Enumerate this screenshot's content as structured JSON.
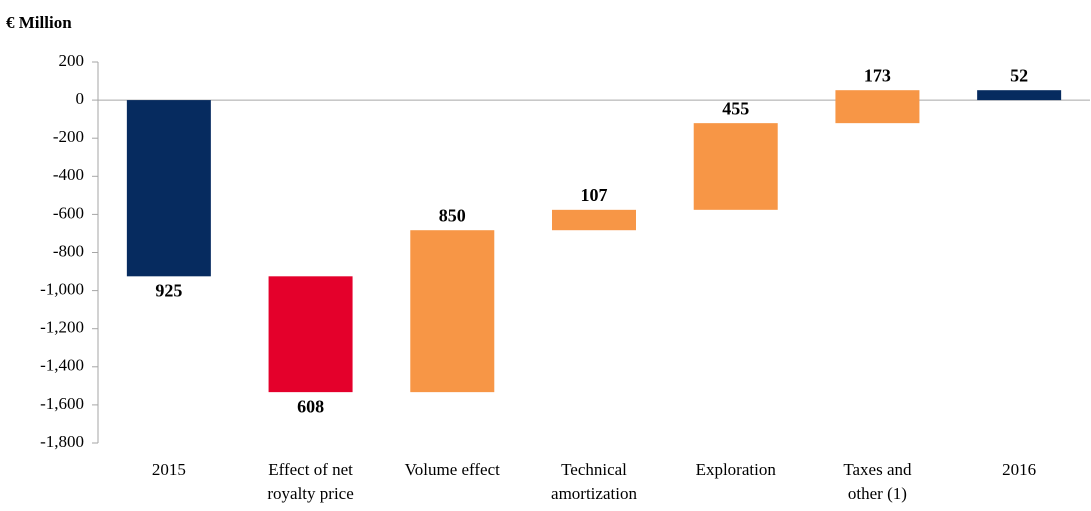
{
  "chart_data": {
    "type": "waterfall",
    "title": "€ Million",
    "categories": [
      "2015",
      "Effect of net royalty price",
      "Volume effect",
      "Technical amortization",
      "Exploration",
      "Taxes and other (1)",
      "2016"
    ],
    "values": [
      -925,
      -608,
      850,
      107,
      455,
      173,
      52
    ],
    "value_labels": [
      "925",
      "608",
      "850",
      "107",
      "455",
      "173",
      "52"
    ],
    "measure": [
      "total",
      "relative",
      "relative",
      "relative",
      "relative",
      "relative",
      "total"
    ],
    "colors": [
      "#062b5f",
      "#e4002b",
      "#f79646",
      "#f79646",
      "#f79646",
      "#f79646",
      "#062b5f"
    ],
    "label_colors": [
      "#17375e",
      "#e4002b",
      "#f79646",
      "#f79646",
      "#f79646",
      "#f79646",
      "#17375e"
    ],
    "ylim": [
      -1800,
      200
    ],
    "yticks": [
      200,
      0,
      -200,
      -400,
      -600,
      -800,
      {
        "value": -1000,
        "label": "-1,000"
      },
      {
        "value": -1200,
        "label": "-1,200"
      },
      {
        "value": -1400,
        "label": "-1,400"
      },
      {
        "value": -1600,
        "label": "-1,600"
      },
      {
        "value": -1800,
        "label": "-1,800"
      }
    ]
  }
}
